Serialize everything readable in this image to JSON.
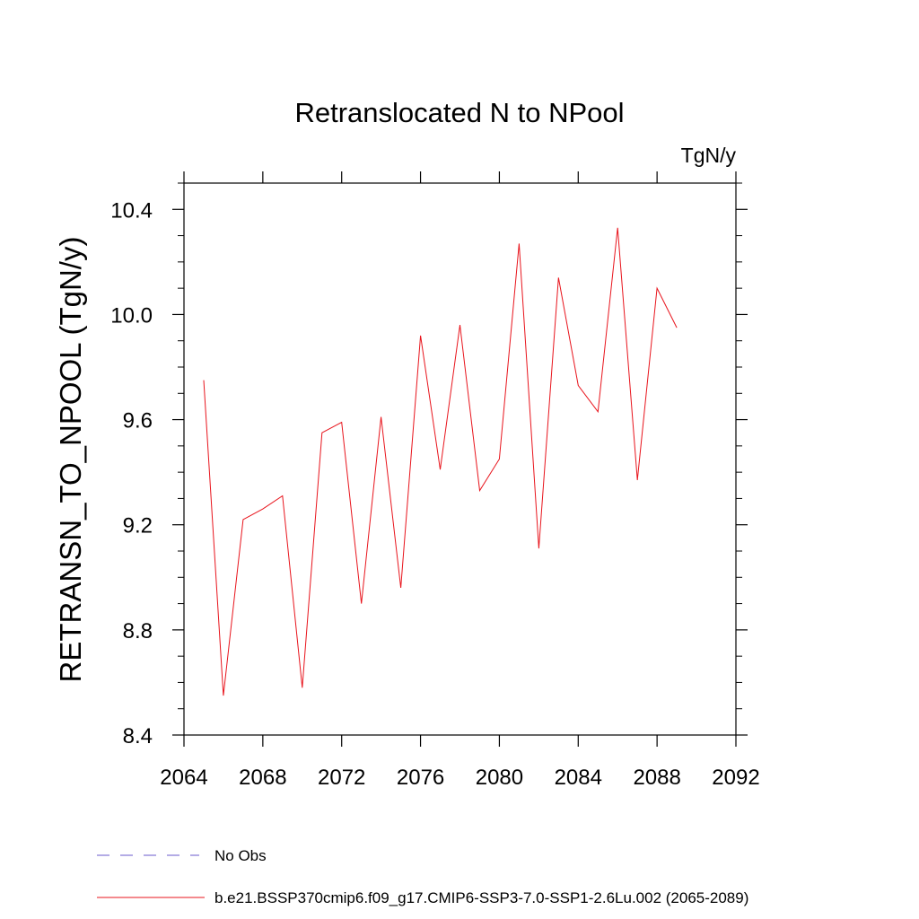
{
  "chart_data": {
    "type": "line",
    "title": "Retranslocated N to NPool",
    "units_label": "TgN/y",
    "ylabel": "RETRANSN_TO_NPOOL  (TgN/y)",
    "xlabel": "",
    "xlim": [
      2064,
      2092
    ],
    "ylim": [
      8.4,
      10.5
    ],
    "x_ticks": [
      2064,
      2068,
      2072,
      2076,
      2080,
      2084,
      2088,
      2092
    ],
    "x_tick_labels": [
      "2064",
      "2068",
      "2072",
      "2076",
      "2080",
      "2084",
      "2088",
      "2092"
    ],
    "y_ticks": [
      8.4,
      8.8,
      9.2,
      9.6,
      10.0,
      10.4
    ],
    "y_tick_labels": [
      "8.4",
      "8.8",
      "9.2",
      "9.6",
      "10.0",
      "10.4"
    ],
    "grid": false,
    "legend_placement": "bottom",
    "series": [
      {
        "name": "b.e21.BSSP370cmip6.f09_g17.CMIP6-SSP3-7.0-SSP1-2.6Lu.002 (2065-2089)",
        "color": "#e8141c",
        "style": "solid",
        "x": [
          2065,
          2066,
          2067,
          2068,
          2069,
          2070,
          2071,
          2072,
          2073,
          2074,
          2075,
          2076,
          2077,
          2078,
          2079,
          2080,
          2081,
          2082,
          2083,
          2084,
          2085,
          2086,
          2087,
          2088,
          2089
        ],
        "y": [
          9.75,
          8.55,
          9.22,
          9.26,
          9.31,
          8.58,
          9.55,
          9.59,
          8.9,
          9.61,
          8.96,
          9.92,
          9.41,
          9.96,
          9.33,
          9.45,
          10.27,
          9.11,
          10.14,
          9.73,
          9.63,
          10.33,
          9.37,
          10.1,
          9.95
        ]
      }
    ],
    "legend": [
      {
        "label": "No Obs",
        "color": "#6a5acd",
        "style": "dashed"
      },
      {
        "label": "b.e21.BSSP370cmip6.f09_g17.CMIP6-SSP3-7.0-SSP1-2.6Lu.002 (2065-2089)",
        "color": "#e8141c",
        "style": "solid"
      }
    ]
  }
}
